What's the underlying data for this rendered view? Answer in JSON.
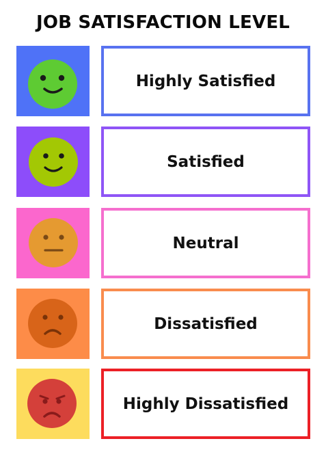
{
  "title": "JOB SATISFACTION LEVEL",
  "levels": [
    {
      "label": "Highly Satisfied",
      "tile_color": "#4f72f7",
      "face_color": "#5ecb33",
      "border_color": "#5872f0",
      "icon": "very-happy-face-icon"
    },
    {
      "label": "Satisfied",
      "tile_color": "#8d4dfa",
      "face_color": "#a3c804",
      "border_color": "#8f55f6",
      "icon": "happy-face-icon"
    },
    {
      "label": "Neutral",
      "tile_color": "#fb67cd",
      "face_color": "#e59a31",
      "border_color": "#f56fce",
      "icon": "neutral-face-icon"
    },
    {
      "label": "Dissatisfied",
      "tile_color": "#fd8c48",
      "face_color": "#d86419",
      "border_color": "#f98c4e",
      "icon": "sad-face-icon"
    },
    {
      "label": "Highly Dissatisfied",
      "tile_color": "#fddc5d",
      "face_color": "#d4403a",
      "border_color": "#ec2026",
      "icon": "angry-face-icon"
    }
  ]
}
